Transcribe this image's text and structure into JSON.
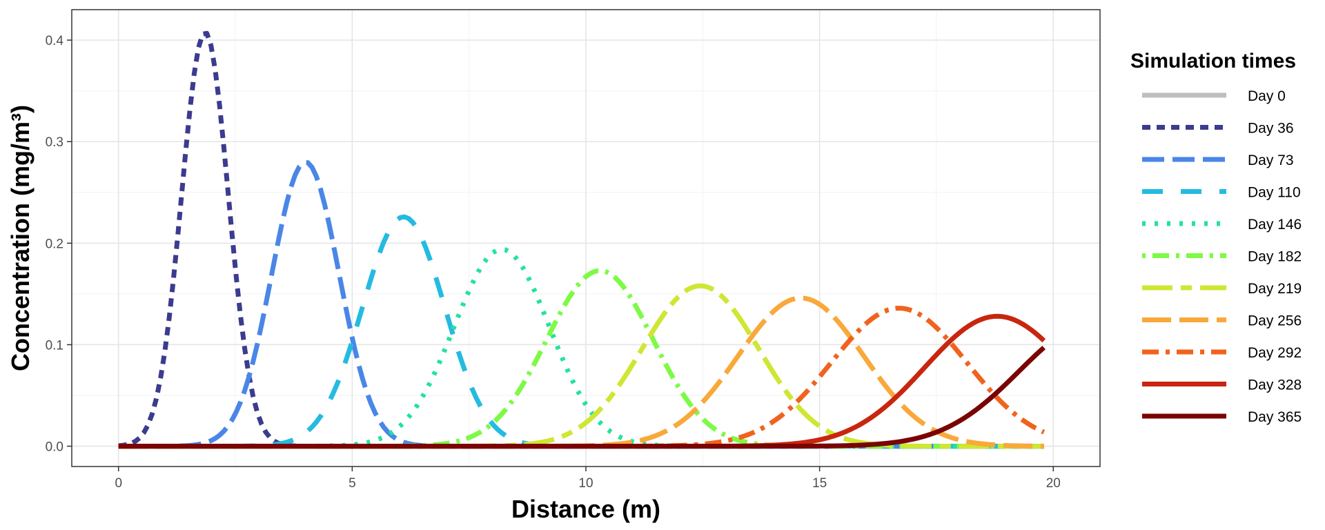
{
  "chart_data": {
    "type": "line",
    "xlabel": "Distance (m)",
    "ylabel": "Concentration (mg/m³)",
    "xlim": [
      -1,
      21
    ],
    "ylim": [
      -0.02,
      0.43
    ],
    "x_ticks": [
      0,
      5,
      10,
      15,
      20
    ],
    "x_tick_labels": [
      "0",
      "5",
      "10",
      "15",
      "20"
    ],
    "y_ticks": [
      0.0,
      0.1,
      0.2,
      0.3,
      0.4
    ],
    "y_tick_labels": [
      "0.0",
      "0.1",
      "0.2",
      "0.3",
      "0.4"
    ],
    "grid": true,
    "legend": {
      "title": "Simulation times",
      "placement": "right"
    },
    "x_range": [
      0,
      19.8
    ],
    "series": [
      {
        "name": "Day 0",
        "peak_x": null,
        "peak_y": 0,
        "sigma": 1,
        "color": "#bebebe",
        "dash": "solid"
      },
      {
        "name": "Day 36",
        "peak_x": 1.85,
        "peak_y": 0.408,
        "sigma": 0.5,
        "color": "#3b3b8f",
        "dash": "short"
      },
      {
        "name": "Day 73",
        "peak_x": 4.0,
        "peak_y": 0.28,
        "sigma": 0.72,
        "color": "#4a86e8",
        "dash": "long"
      },
      {
        "name": "Day 110",
        "peak_x": 6.1,
        "peak_y": 0.226,
        "sigma": 0.88,
        "color": "#24bbe0",
        "dash": "longspaced"
      },
      {
        "name": "Day 146",
        "peak_x": 8.2,
        "peak_y": 0.194,
        "sigma": 1.02,
        "color": "#22e39b",
        "dash": "dotted"
      },
      {
        "name": "Day 182",
        "peak_x": 10.3,
        "peak_y": 0.173,
        "sigma": 1.14,
        "color": "#7dfa45",
        "dash": "dotdash"
      },
      {
        "name": "Day 219",
        "peak_x": 12.45,
        "peak_y": 0.158,
        "sigma": 1.25,
        "color": "#cfe632",
        "dash": "twodash"
      },
      {
        "name": "Day 256",
        "peak_x": 14.6,
        "peak_y": 0.146,
        "sigma": 1.35,
        "color": "#f9a83a",
        "dash": "longdash"
      },
      {
        "name": "Day 292",
        "peak_x": 16.7,
        "peak_y": 0.136,
        "sigma": 1.45,
        "color": "#f0631e",
        "dash": "dashdot"
      },
      {
        "name": "Day 328",
        "peak_x": 18.8,
        "peak_y": 0.128,
        "sigma": 1.55,
        "color": "#c8260e",
        "dash": "solid"
      },
      {
        "name": "Day 365",
        "peak_x": 20.9,
        "peak_y": 0.122,
        "sigma": 1.63,
        "color": "#7a0403",
        "dash": "solid"
      }
    ]
  }
}
